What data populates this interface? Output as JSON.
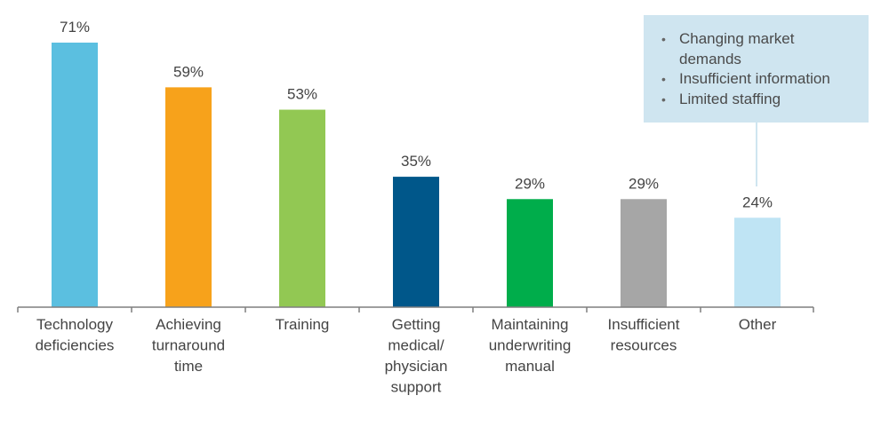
{
  "chart_data": {
    "type": "bar",
    "categories": [
      [
        "Technology",
        "deficiencies"
      ],
      [
        "Achieving",
        "turnaround",
        "time"
      ],
      [
        "Training"
      ],
      [
        "Getting",
        "medical/",
        "physician",
        "support"
      ],
      [
        "Maintaining",
        "underwriting",
        "manual"
      ],
      [
        "Insufficient",
        "resources"
      ],
      [
        "Other"
      ]
    ],
    "values": [
      71,
      59,
      53,
      35,
      29,
      29,
      24
    ],
    "value_labels": [
      "71%",
      "59%",
      "53%",
      "35%",
      "29%",
      "29%",
      "24%"
    ],
    "colors": [
      "#5bbfe0",
      "#f7a21b",
      "#92c853",
      "#00578a",
      "#00ad4b",
      "#a6a6a6",
      "#bfe4f4"
    ],
    "ylim": [
      0,
      71
    ],
    "grid": false,
    "legend": "none"
  },
  "callout": {
    "items": [
      "Changing market demands",
      "Insufficient information",
      "Limited staffing"
    ]
  }
}
